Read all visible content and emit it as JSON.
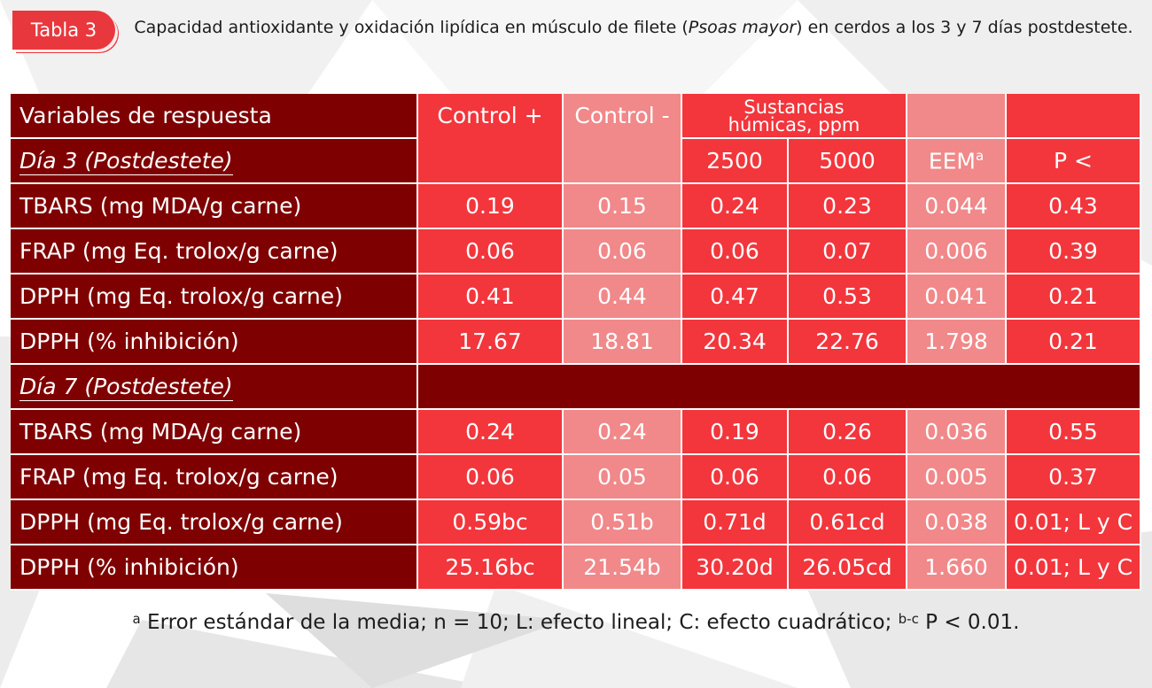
{
  "tag": "Tabla 3",
  "caption": {
    "part1": "Capacidad antioxidante y oxidación lipídica en músculo de filete (",
    "italic": "Psoas mayor",
    "part2": ") en cerdos a los 3 y 7 días postdestete."
  },
  "table": {
    "header": {
      "variables": "Variables de respuesta",
      "control_pos": "Control +",
      "control_neg": "Control -",
      "humic_line1": "Sustancias",
      "humic_line2": "húmicas, ppm",
      "dose1": "2500",
      "dose2": "5000",
      "eem": "EEM",
      "eem_sup": "a",
      "p": "P <"
    },
    "day3_label": "Día 3 (Postdestete)",
    "day7_label": "Día 7 (Postdestete)",
    "day3_rows": [
      {
        "label": "TBARS (mg MDA/g carne)",
        "c_pos": "0.19",
        "c_neg": "0.15",
        "d2500": "0.24",
        "d5000": "0.23",
        "eem": "0.044",
        "p": "0.43"
      },
      {
        "label": "FRAP (mg Eq. trolox/g carne)",
        "c_pos": "0.06",
        "c_neg": "0.06",
        "d2500": "0.06",
        "d5000": "0.07",
        "eem": "0.006",
        "p": "0.39"
      },
      {
        "label": "DPPH (mg Eq. trolox/g carne)",
        "c_pos": "0.41",
        "c_neg": "0.44",
        "d2500": "0.47",
        "d5000": "0.53",
        "eem": "0.041",
        "p": "0.21"
      },
      {
        "label": "DPPH (% inhibición)",
        "c_pos": "17.67",
        "c_neg": "18.81",
        "d2500": "20.34",
        "d5000": "22.76",
        "eem": "1.798",
        "p": "0.21"
      }
    ],
    "day7_rows": [
      {
        "label": "TBARS (mg MDA/g carne)",
        "c_pos": "0.24",
        "c_neg": "0.24",
        "d2500": "0.19",
        "d5000": "0.26",
        "eem": "0.036",
        "p": "0.55"
      },
      {
        "label": "FRAP (mg Eq. trolox/g carne)",
        "c_pos": "0.06",
        "c_neg": "0.05",
        "d2500": "0.06",
        "d5000": "0.06",
        "eem": "0.005",
        "p": "0.37"
      },
      {
        "label": "DPPH (mg Eq. trolox/g carne)",
        "c_pos": "0.59bc",
        "c_neg": "0.51b",
        "d2500": "0.71d",
        "d5000": "0.61cd",
        "eem": "0.038",
        "p": "0.01; L y C"
      },
      {
        "label": "DPPH (% inhibición)",
        "c_pos": "25.16bc",
        "c_neg": "21.54b",
        "d2500": "30.20d",
        "d5000": "26.05cd",
        "eem": "1.660",
        "p": "0.01; L y C"
      }
    ]
  },
  "footnote": {
    "sup_a": "a",
    "part1": " Error estándar de la media; n = 10; L: efecto lineal; C: efecto cuadrático; ",
    "sup_bc": "b-c",
    "part2": " P < 0.01."
  },
  "colors": {
    "dark_red": "#7f0000",
    "red": "#f2363c",
    "pink": "#f18889",
    "tag_red": "#e8383d"
  }
}
